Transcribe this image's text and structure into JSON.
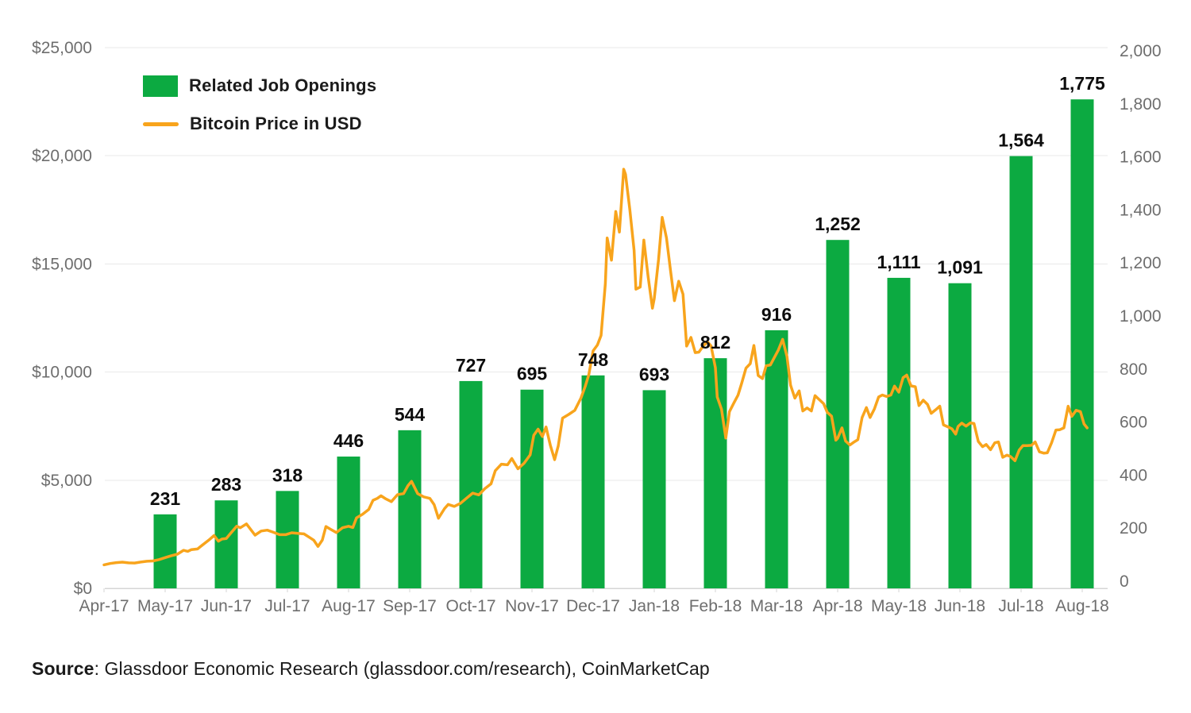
{
  "page": {
    "background": "#ffffff"
  },
  "legend": {
    "items": [
      {
        "label": "Related Job Openings",
        "swatch": "bar",
        "color": "#0caa41"
      },
      {
        "label": "Bitcoin Price in USD",
        "swatch": "line",
        "color": "#f8a41c"
      }
    ]
  },
  "source": {
    "label": "Source",
    "text": ": Glassdoor Economic Research (glassdoor.com/research), CoinMarketCap"
  },
  "chart_data": {
    "type": "combo bar+line",
    "title": "",
    "grid": "horizontal",
    "legend_position": "top-left",
    "categories": [
      "Apr-17",
      "May-17",
      "Jun-17",
      "Jul-17",
      "Aug-17",
      "Sep-17",
      "Oct-17",
      "Nov-17",
      "Dec-17",
      "Jan-18",
      "Feb-18",
      "Mar-18",
      "Apr-18",
      "May-18",
      "Jun-18",
      "Jul-18",
      "Aug-18"
    ],
    "left_axis": {
      "min": 0,
      "max": 25000,
      "tick_labels": [
        "$25,000",
        "$20,000",
        "$15,000",
        "$10,000",
        "$5,000",
        "$0"
      ]
    },
    "right_axis": {
      "min": 0,
      "max": 2000,
      "tick_labels": [
        "2,000",
        "1,800",
        "1,600",
        "1,400",
        "1,200",
        "1,000",
        "800",
        "600",
        "400",
        "200",
        "0"
      ]
    },
    "series": [
      {
        "name": "Related Job Openings",
        "type": "bar",
        "axis": "right",
        "color": "#0caa41",
        "values": [
          null,
          231,
          283,
          318,
          446,
          544,
          727,
          695,
          748,
          693,
          812,
          916,
          1252,
          1111,
          1091,
          1564,
          1775
        ],
        "value_labels": [
          null,
          "231",
          "283",
          "318",
          "446",
          "544",
          "727",
          "695",
          "748",
          "693",
          "812",
          "916",
          "1,252",
          "1,111",
          "1,091",
          "1,564",
          "1,775"
        ]
      },
      {
        "name": "Bitcoin Price in USD",
        "type": "line",
        "axis": "left",
        "color": "#f8a41c",
        "x_unit": "fractional months since Apr-2017",
        "points": [
          [
            0.0,
            1085
          ],
          [
            0.1,
            1150
          ],
          [
            0.2,
            1190
          ],
          [
            0.3,
            1210
          ],
          [
            0.4,
            1180
          ],
          [
            0.5,
            1170
          ],
          [
            0.6,
            1215
          ],
          [
            0.7,
            1250
          ],
          [
            0.8,
            1265
          ],
          [
            0.9,
            1330
          ],
          [
            1.0,
            1420
          ],
          [
            1.1,
            1510
          ],
          [
            1.2,
            1580
          ],
          [
            1.3,
            1760
          ],
          [
            1.37,
            1710
          ],
          [
            1.43,
            1790
          ],
          [
            1.53,
            1820
          ],
          [
            1.63,
            2050
          ],
          [
            1.73,
            2270
          ],
          [
            1.8,
            2440
          ],
          [
            1.87,
            2180
          ],
          [
            1.93,
            2280
          ],
          [
            2.0,
            2300
          ],
          [
            2.07,
            2540
          ],
          [
            2.17,
            2870
          ],
          [
            2.23,
            2800
          ],
          [
            2.33,
            2980
          ],
          [
            2.4,
            2720
          ],
          [
            2.47,
            2460
          ],
          [
            2.57,
            2650
          ],
          [
            2.67,
            2690
          ],
          [
            2.77,
            2590
          ],
          [
            2.87,
            2480
          ],
          [
            2.97,
            2480
          ],
          [
            3.07,
            2570
          ],
          [
            3.17,
            2540
          ],
          [
            3.27,
            2520
          ],
          [
            3.37,
            2340
          ],
          [
            3.43,
            2230
          ],
          [
            3.5,
            1940
          ],
          [
            3.57,
            2230
          ],
          [
            3.63,
            2860
          ],
          [
            3.7,
            2740
          ],
          [
            3.8,
            2580
          ],
          [
            3.9,
            2800
          ],
          [
            4.0,
            2870
          ],
          [
            4.07,
            2810
          ],
          [
            4.13,
            3260
          ],
          [
            4.23,
            3430
          ],
          [
            4.33,
            3650
          ],
          [
            4.4,
            4070
          ],
          [
            4.47,
            4160
          ],
          [
            4.53,
            4280
          ],
          [
            4.6,
            4150
          ],
          [
            4.7,
            4010
          ],
          [
            4.8,
            4330
          ],
          [
            4.9,
            4380
          ],
          [
            4.97,
            4740
          ],
          [
            5.03,
            4950
          ],
          [
            5.13,
            4380
          ],
          [
            5.23,
            4230
          ],
          [
            5.33,
            4160
          ],
          [
            5.4,
            3870
          ],
          [
            5.47,
            3240
          ],
          [
            5.57,
            3690
          ],
          [
            5.63,
            3880
          ],
          [
            5.73,
            3790
          ],
          [
            5.83,
            3930
          ],
          [
            5.93,
            4170
          ],
          [
            6.03,
            4400
          ],
          [
            6.13,
            4320
          ],
          [
            6.23,
            4610
          ],
          [
            6.33,
            4830
          ],
          [
            6.4,
            5440
          ],
          [
            6.5,
            5740
          ],
          [
            6.6,
            5710
          ],
          [
            6.67,
            6000
          ],
          [
            6.77,
            5530
          ],
          [
            6.87,
            5780
          ],
          [
            6.97,
            6170
          ],
          [
            7.03,
            7080
          ],
          [
            7.1,
            7360
          ],
          [
            7.17,
            7020
          ],
          [
            7.23,
            7460
          ],
          [
            7.3,
            6620
          ],
          [
            7.37,
            5950
          ],
          [
            7.43,
            6590
          ],
          [
            7.5,
            7870
          ],
          [
            7.6,
            8040
          ],
          [
            7.7,
            8230
          ],
          [
            7.8,
            8790
          ],
          [
            7.87,
            9330
          ],
          [
            7.93,
            9880
          ],
          [
            8.0,
            10980
          ],
          [
            8.07,
            11250
          ],
          [
            8.13,
            11690
          ],
          [
            8.2,
            14090
          ],
          [
            8.23,
            16200
          ],
          [
            8.3,
            15170
          ],
          [
            8.37,
            17420
          ],
          [
            8.43,
            16470
          ],
          [
            8.5,
            19380
          ],
          [
            8.53,
            19140
          ],
          [
            8.6,
            17520
          ],
          [
            8.67,
            15630
          ],
          [
            8.7,
            13830
          ],
          [
            8.77,
            13930
          ],
          [
            8.83,
            16100
          ],
          [
            8.9,
            14400
          ],
          [
            8.97,
            12950
          ],
          [
            9.0,
            13400
          ],
          [
            9.07,
            15200
          ],
          [
            9.13,
            17150
          ],
          [
            9.2,
            16200
          ],
          [
            9.27,
            14600
          ],
          [
            9.33,
            13300
          ],
          [
            9.4,
            14200
          ],
          [
            9.47,
            13600
          ],
          [
            9.53,
            11200
          ],
          [
            9.6,
            11600
          ],
          [
            9.67,
            10900
          ],
          [
            9.73,
            10920
          ],
          [
            9.8,
            11200
          ],
          [
            9.87,
            11400
          ],
          [
            9.93,
            11200
          ],
          [
            10.0,
            10200
          ],
          [
            10.03,
            8850
          ],
          [
            10.1,
            8280
          ],
          [
            10.17,
            6950
          ],
          [
            10.23,
            8170
          ],
          [
            10.3,
            8560
          ],
          [
            10.37,
            8930
          ],
          [
            10.43,
            9480
          ],
          [
            10.5,
            10180
          ],
          [
            10.57,
            10390
          ],
          [
            10.63,
            11230
          ],
          [
            10.7,
            9840
          ],
          [
            10.77,
            9700
          ],
          [
            10.83,
            10290
          ],
          [
            10.9,
            10330
          ],
          [
            11.03,
            11020
          ],
          [
            11.1,
            11510
          ],
          [
            11.17,
            10730
          ],
          [
            11.23,
            9390
          ],
          [
            11.3,
            8790
          ],
          [
            11.37,
            9130
          ],
          [
            11.43,
            8200
          ],
          [
            11.5,
            8340
          ],
          [
            11.57,
            8200
          ],
          [
            11.63,
            8910
          ],
          [
            11.7,
            8720
          ],
          [
            11.77,
            8540
          ],
          [
            11.83,
            8140
          ],
          [
            11.9,
            7960
          ],
          [
            11.97,
            6850
          ],
          [
            12.0,
            6940
          ],
          [
            12.07,
            7420
          ],
          [
            12.13,
            6810
          ],
          [
            12.2,
            6630
          ],
          [
            12.27,
            6770
          ],
          [
            12.33,
            6870
          ],
          [
            12.4,
            7900
          ],
          [
            12.47,
            8360
          ],
          [
            12.53,
            7900
          ],
          [
            12.6,
            8290
          ],
          [
            12.67,
            8850
          ],
          [
            12.73,
            8940
          ],
          [
            12.8,
            8870
          ],
          [
            12.87,
            8940
          ],
          [
            12.93,
            9350
          ],
          [
            13.0,
            9070
          ],
          [
            13.07,
            9740
          ],
          [
            13.13,
            9860
          ],
          [
            13.2,
            9360
          ],
          [
            13.27,
            9320
          ],
          [
            13.33,
            8450
          ],
          [
            13.4,
            8700
          ],
          [
            13.47,
            8500
          ],
          [
            13.53,
            8090
          ],
          [
            13.6,
            8250
          ],
          [
            13.67,
            8420
          ],
          [
            13.73,
            7560
          ],
          [
            13.8,
            7470
          ],
          [
            13.87,
            7370
          ],
          [
            13.93,
            7130
          ],
          [
            13.97,
            7490
          ],
          [
            14.03,
            7640
          ],
          [
            14.1,
            7500
          ],
          [
            14.17,
            7650
          ],
          [
            14.23,
            7620
          ],
          [
            14.3,
            6790
          ],
          [
            14.37,
            6550
          ],
          [
            14.43,
            6650
          ],
          [
            14.5,
            6410
          ],
          [
            14.57,
            6730
          ],
          [
            14.63,
            6770
          ],
          [
            14.7,
            6060
          ],
          [
            14.77,
            6160
          ],
          [
            14.83,
            6090
          ],
          [
            14.9,
            5900
          ],
          [
            14.97,
            6400
          ],
          [
            15.03,
            6600
          ],
          [
            15.1,
            6600
          ],
          [
            15.17,
            6610
          ],
          [
            15.23,
            6770
          ],
          [
            15.3,
            6310
          ],
          [
            15.37,
            6250
          ],
          [
            15.43,
            6270
          ],
          [
            15.5,
            6740
          ],
          [
            15.57,
            7320
          ],
          [
            15.63,
            7330
          ],
          [
            15.7,
            7420
          ],
          [
            15.77,
            8420
          ],
          [
            15.83,
            7950
          ],
          [
            15.9,
            8230
          ],
          [
            15.97,
            8170
          ],
          [
            16.03,
            7600
          ],
          [
            16.08,
            7420
          ]
        ]
      }
    ]
  }
}
